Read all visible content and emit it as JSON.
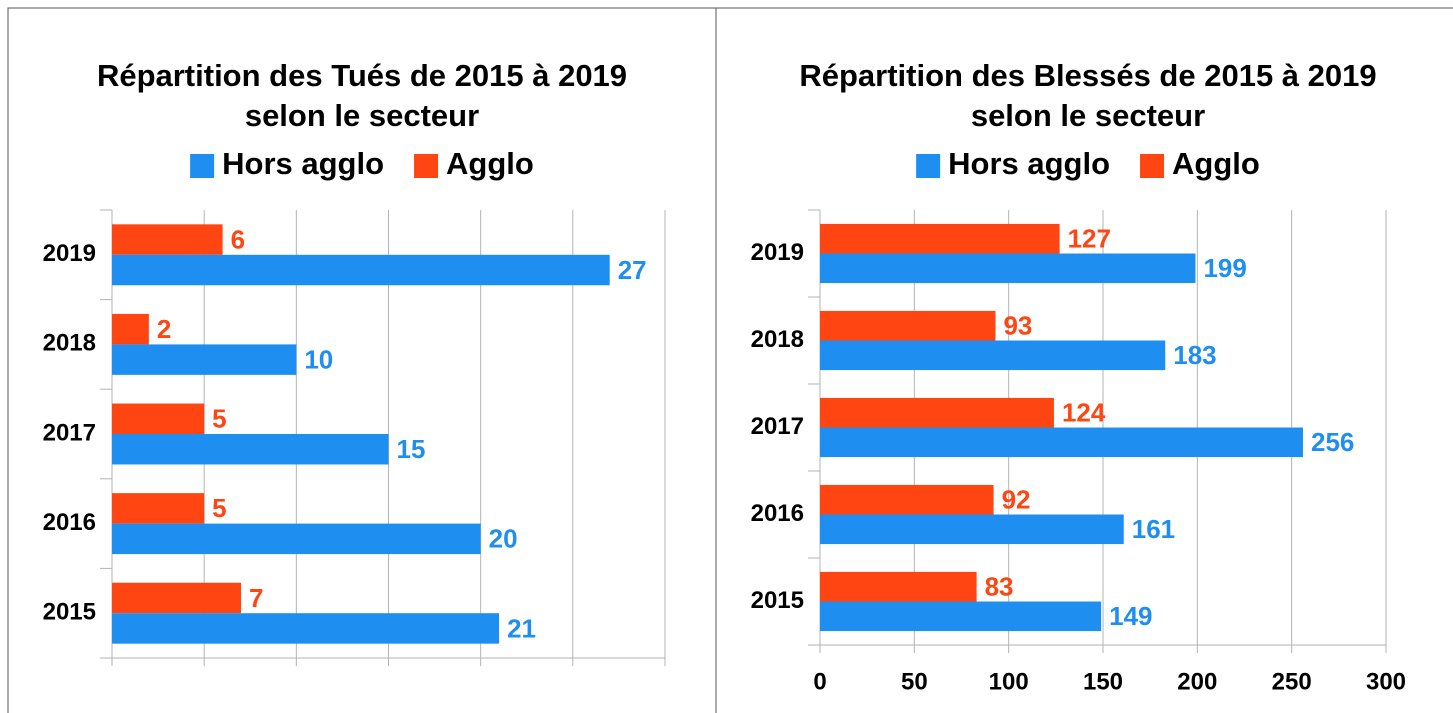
{
  "chart_data": [
    {
      "type": "bar",
      "orientation": "horizontal",
      "title": "Répartition des Tués de 2015 à 2019",
      "subtitle": "selon le secteur",
      "categories": [
        "2019",
        "2018",
        "2017",
        "2016",
        "2015"
      ],
      "series": [
        {
          "name": "Hors agglo",
          "color": "#1e8ff0",
          "values": [
            27,
            10,
            15,
            20,
            21
          ]
        },
        {
          "name": "Agglo",
          "color": "#ff4512",
          "values": [
            6,
            2,
            5,
            5,
            7
          ]
        }
      ],
      "xlim": [
        0,
        30
      ],
      "xticks": [
        0,
        5,
        10,
        15,
        20,
        25,
        30
      ],
      "x_tick_labels": false,
      "grid": true,
      "legend": "top"
    },
    {
      "type": "bar",
      "orientation": "horizontal",
      "title": "Répartition des Blessés de 2015 à 2019",
      "subtitle": "selon le secteur",
      "categories": [
        "2019",
        "2018",
        "2017",
        "2016",
        "2015"
      ],
      "series": [
        {
          "name": "Hors agglo",
          "color": "#1e8ff0",
          "values": [
            199,
            183,
            256,
            161,
            149
          ]
        },
        {
          "name": "Agglo",
          "color": "#ff4512",
          "values": [
            127,
            93,
            124,
            92,
            83
          ]
        }
      ],
      "xlim": [
        0,
        300
      ],
      "xticks": [
        0,
        50,
        100,
        150,
        200,
        250,
        300
      ],
      "x_tick_labels": true,
      "grid": true,
      "legend": "top"
    }
  ]
}
